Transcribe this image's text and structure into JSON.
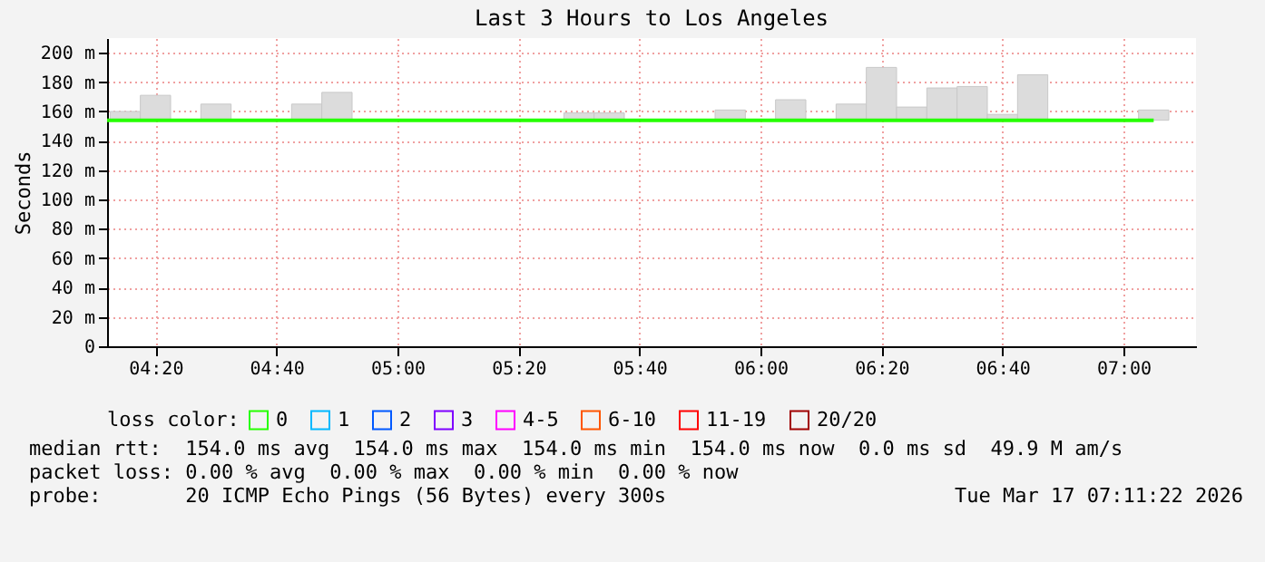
{
  "chart_data": {
    "type": "bar",
    "title": "Last 3 Hours to Los Angeles",
    "ylabel": "Seconds",
    "legend_title": "loss color:",
    "legend": "bottom",
    "grid": true,
    "xlim": [
      "2026-03-17T04:12",
      "2026-03-17T07:12"
    ],
    "xticks": [
      {
        "value": "2026-03-17T04:20",
        "label": "04:20"
      },
      {
        "value": "2026-03-17T04:40",
        "label": "04:40"
      },
      {
        "value": "2026-03-17T05:00",
        "label": "05:00"
      },
      {
        "value": "2026-03-17T05:20",
        "label": "05:20"
      },
      {
        "value": "2026-03-17T05:40",
        "label": "05:40"
      },
      {
        "value": "2026-03-17T06:00",
        "label": "06:00"
      },
      {
        "value": "2026-03-17T06:20",
        "label": "06:20"
      },
      {
        "value": "2026-03-17T06:40",
        "label": "06:40"
      },
      {
        "value": "2026-03-17T07:00",
        "label": "07:00"
      }
    ],
    "ylim": [
      0,
      210
    ],
    "yticks": [
      0,
      {
        "value": 20,
        "label": "20 m"
      },
      {
        "value": 40,
        "label": "40 m"
      },
      {
        "value": 60,
        "label": "60 m"
      },
      {
        "value": 80,
        "label": "80 m"
      },
      {
        "value": 100,
        "label": "100 m"
      },
      {
        "value": 120,
        "label": "120 m"
      },
      {
        "value": 140,
        "label": "140 m"
      },
      {
        "value": 160,
        "label": "160 m"
      },
      {
        "value": 180,
        "label": "180 m"
      },
      {
        "value": 200,
        "label": "200 m"
      }
    ],
    "series": [
      {
        "color": "#dcdcdc",
        "x": [
          "2026-03-17T04:15",
          "2026-03-17T04:20",
          "2026-03-17T04:30",
          "2026-03-17T04:45",
          "2026-03-17T04:50",
          "2026-03-17T05:30",
          "2026-03-17T05:35",
          "2026-03-17T05:55",
          "2026-03-17T06:05",
          "2026-03-17T06:15",
          "2026-03-17T06:20",
          "2026-03-17T06:25",
          "2026-03-17T06:30",
          "2026-03-17T06:35",
          "2026-03-17T06:40",
          "2026-03-17T06:45",
          "2026-03-17T07:05"
        ],
        "base": [
          154,
          154,
          154,
          154,
          154,
          154,
          154,
          154,
          154,
          154,
          154,
          154,
          154,
          154,
          154,
          154,
          154
        ],
        "values": [
          6,
          17,
          11,
          11,
          19,
          5,
          5,
          7,
          14,
          11,
          36,
          9,
          22,
          23,
          4,
          31,
          7
        ]
      },
      {
        "type": "line",
        "name": "0",
        "color": "#26ff00",
        "x": [
          "2026-03-17T04:12",
          "2026-03-17T07:05"
        ],
        "values": [
          154,
          154
        ]
      },
      {
        "type": "line",
        "name": "1",
        "color": "#00b8ff",
        "values": [
          null
        ]
      },
      {
        "type": "line",
        "name": "2",
        "color": "#0059ff",
        "values": [
          null
        ]
      },
      {
        "type": "line",
        "name": "3",
        "color": "#7e00ff",
        "values": [
          null
        ]
      },
      {
        "type": "line",
        "name": "4-5",
        "color": "#ff00ff",
        "values": [
          null
        ]
      },
      {
        "type": "line",
        "name": "6-10",
        "color": "#ff5500",
        "values": [
          null
        ]
      },
      {
        "type": "line",
        "name": "11-19",
        "color": "#ff0000",
        "values": [
          null
        ]
      },
      {
        "type": "line",
        "name": "20/20",
        "color": "#a10000",
        "values": [
          null
        ]
      }
    ],
    "annotations": [
      "median rtt:  154.0 ms avg  154.0 ms max  154.0 ms min  154.0 ms now  0.0 ms sd  49.9 M am/s",
      "packet loss: 0.00 % avg  0.00 % max  0.00 % min  0.00 % now",
      "probe:       20 ICMP Echo Pings (56 Bytes) every 300s",
      "Tue Mar 17 07:11:22 2026"
    ]
  }
}
